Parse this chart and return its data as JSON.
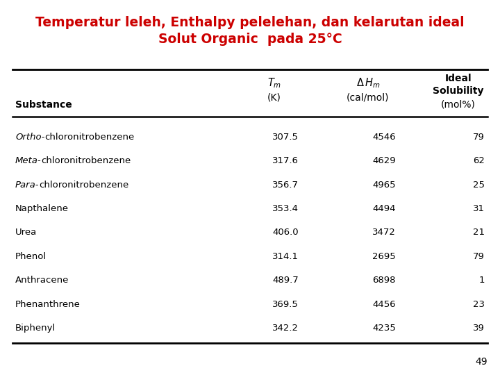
{
  "title_line1": "Temperatur leleh, Enthalpy pelelehan, dan kelarutan ideal",
  "title_line2": "Solut Organic  pada 25°C",
  "title_color": "#cc0000",
  "rows": [
    [
      "Ortho-chloronitrobenzene",
      "307.5",
      "4546",
      "79"
    ],
    [
      "Meta-chloronitrobenzene",
      "317.6",
      "4629",
      "62"
    ],
    [
      "Para-chloronitrobenzene",
      "356.7",
      "4965",
      "25"
    ],
    [
      "Napthalene",
      "353.4",
      "4494",
      "31"
    ],
    [
      "Urea",
      "406.0",
      "3472",
      "21"
    ],
    [
      "Phenol",
      "314.1",
      "2695",
      "79"
    ],
    [
      "Anthracene",
      "489.7",
      "6898",
      "1"
    ],
    [
      "Phenanthrene",
      "369.5",
      "4456",
      "23"
    ],
    [
      "Biphenyl",
      "342.2",
      "4235",
      "39"
    ]
  ],
  "italic_prefixes": [
    "Ortho",
    "Meta",
    "Para"
  ],
  "page_number": "49",
  "bg_color": "#ffffff",
  "fig_width": 7.2,
  "fig_height": 5.4,
  "dpi": 100
}
